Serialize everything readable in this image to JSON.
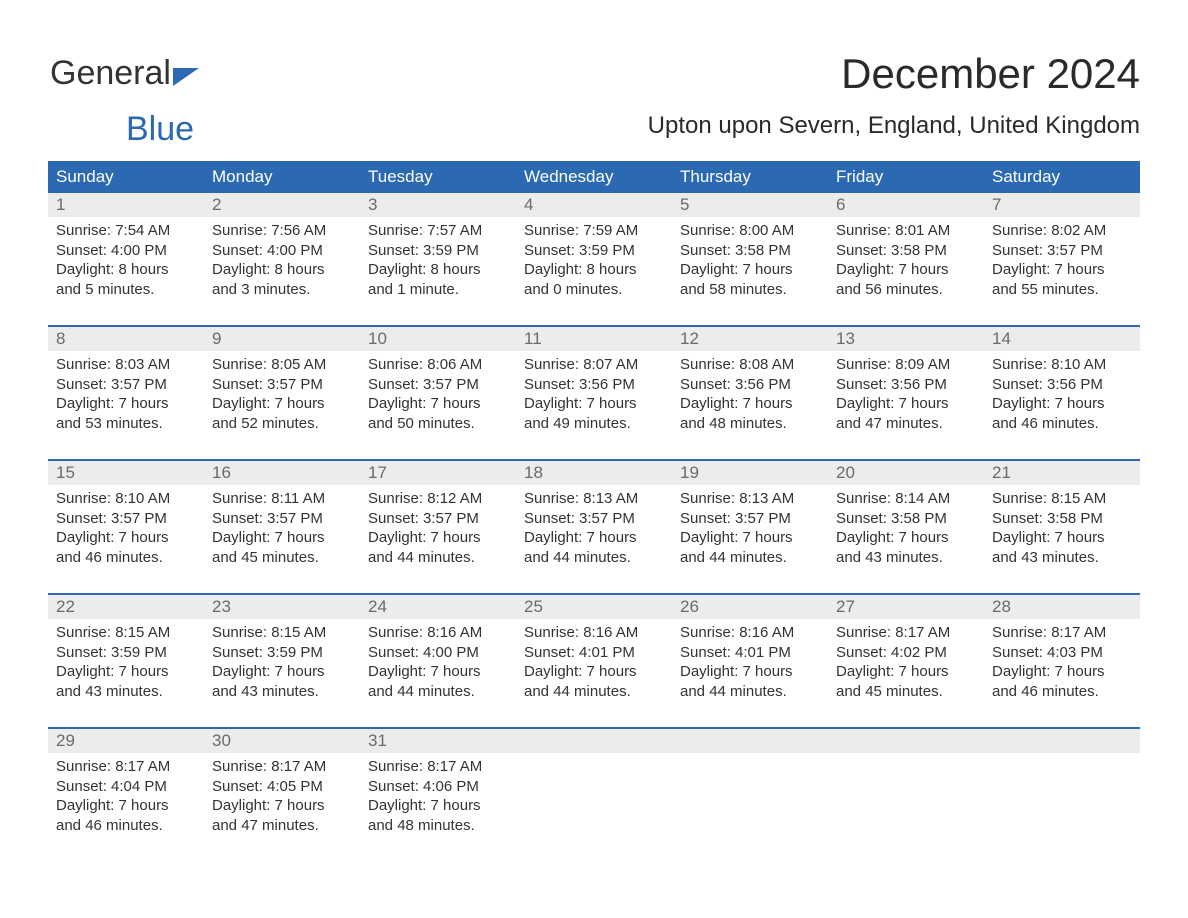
{
  "brand": {
    "word1": "General",
    "word2": "Blue"
  },
  "title": "December 2024",
  "location": "Upton upon Severn, England, United Kingdom",
  "colors": {
    "header_bg": "#2b6ab3",
    "header_text": "#ffffff",
    "daynum_bg": "#ececec",
    "daynum_text": "#6b6b6b",
    "body_text": "#333333",
    "rule": "#2b6ab3",
    "page_bg": "#ffffff"
  },
  "weekdays": [
    "Sunday",
    "Monday",
    "Tuesday",
    "Wednesday",
    "Thursday",
    "Friday",
    "Saturday"
  ],
  "weeks": [
    [
      {
        "n": "1",
        "sunrise": "Sunrise: 7:54 AM",
        "sunset": "Sunset: 4:00 PM",
        "daylight": "Daylight: 8 hours and 5 minutes."
      },
      {
        "n": "2",
        "sunrise": "Sunrise: 7:56 AM",
        "sunset": "Sunset: 4:00 PM",
        "daylight": "Daylight: 8 hours and 3 minutes."
      },
      {
        "n": "3",
        "sunrise": "Sunrise: 7:57 AM",
        "sunset": "Sunset: 3:59 PM",
        "daylight": "Daylight: 8 hours and 1 minute."
      },
      {
        "n": "4",
        "sunrise": "Sunrise: 7:59 AM",
        "sunset": "Sunset: 3:59 PM",
        "daylight": "Daylight: 8 hours and 0 minutes."
      },
      {
        "n": "5",
        "sunrise": "Sunrise: 8:00 AM",
        "sunset": "Sunset: 3:58 PM",
        "daylight": "Daylight: 7 hours and 58 minutes."
      },
      {
        "n": "6",
        "sunrise": "Sunrise: 8:01 AM",
        "sunset": "Sunset: 3:58 PM",
        "daylight": "Daylight: 7 hours and 56 minutes."
      },
      {
        "n": "7",
        "sunrise": "Sunrise: 8:02 AM",
        "sunset": "Sunset: 3:57 PM",
        "daylight": "Daylight: 7 hours and 55 minutes."
      }
    ],
    [
      {
        "n": "8",
        "sunrise": "Sunrise: 8:03 AM",
        "sunset": "Sunset: 3:57 PM",
        "daylight": "Daylight: 7 hours and 53 minutes."
      },
      {
        "n": "9",
        "sunrise": "Sunrise: 8:05 AM",
        "sunset": "Sunset: 3:57 PM",
        "daylight": "Daylight: 7 hours and 52 minutes."
      },
      {
        "n": "10",
        "sunrise": "Sunrise: 8:06 AM",
        "sunset": "Sunset: 3:57 PM",
        "daylight": "Daylight: 7 hours and 50 minutes."
      },
      {
        "n": "11",
        "sunrise": "Sunrise: 8:07 AM",
        "sunset": "Sunset: 3:56 PM",
        "daylight": "Daylight: 7 hours and 49 minutes."
      },
      {
        "n": "12",
        "sunrise": "Sunrise: 8:08 AM",
        "sunset": "Sunset: 3:56 PM",
        "daylight": "Daylight: 7 hours and 48 minutes."
      },
      {
        "n": "13",
        "sunrise": "Sunrise: 8:09 AM",
        "sunset": "Sunset: 3:56 PM",
        "daylight": "Daylight: 7 hours and 47 minutes."
      },
      {
        "n": "14",
        "sunrise": "Sunrise: 8:10 AM",
        "sunset": "Sunset: 3:56 PM",
        "daylight": "Daylight: 7 hours and 46 minutes."
      }
    ],
    [
      {
        "n": "15",
        "sunrise": "Sunrise: 8:10 AM",
        "sunset": "Sunset: 3:57 PM",
        "daylight": "Daylight: 7 hours and 46 minutes."
      },
      {
        "n": "16",
        "sunrise": "Sunrise: 8:11 AM",
        "sunset": "Sunset: 3:57 PM",
        "daylight": "Daylight: 7 hours and 45 minutes."
      },
      {
        "n": "17",
        "sunrise": "Sunrise: 8:12 AM",
        "sunset": "Sunset: 3:57 PM",
        "daylight": "Daylight: 7 hours and 44 minutes."
      },
      {
        "n": "18",
        "sunrise": "Sunrise: 8:13 AM",
        "sunset": "Sunset: 3:57 PM",
        "daylight": "Daylight: 7 hours and 44 minutes."
      },
      {
        "n": "19",
        "sunrise": "Sunrise: 8:13 AM",
        "sunset": "Sunset: 3:57 PM",
        "daylight": "Daylight: 7 hours and 44 minutes."
      },
      {
        "n": "20",
        "sunrise": "Sunrise: 8:14 AM",
        "sunset": "Sunset: 3:58 PM",
        "daylight": "Daylight: 7 hours and 43 minutes."
      },
      {
        "n": "21",
        "sunrise": "Sunrise: 8:15 AM",
        "sunset": "Sunset: 3:58 PM",
        "daylight": "Daylight: 7 hours and 43 minutes."
      }
    ],
    [
      {
        "n": "22",
        "sunrise": "Sunrise: 8:15 AM",
        "sunset": "Sunset: 3:59 PM",
        "daylight": "Daylight: 7 hours and 43 minutes."
      },
      {
        "n": "23",
        "sunrise": "Sunrise: 8:15 AM",
        "sunset": "Sunset: 3:59 PM",
        "daylight": "Daylight: 7 hours and 43 minutes."
      },
      {
        "n": "24",
        "sunrise": "Sunrise: 8:16 AM",
        "sunset": "Sunset: 4:00 PM",
        "daylight": "Daylight: 7 hours and 44 minutes."
      },
      {
        "n": "25",
        "sunrise": "Sunrise: 8:16 AM",
        "sunset": "Sunset: 4:01 PM",
        "daylight": "Daylight: 7 hours and 44 minutes."
      },
      {
        "n": "26",
        "sunrise": "Sunrise: 8:16 AM",
        "sunset": "Sunset: 4:01 PM",
        "daylight": "Daylight: 7 hours and 44 minutes."
      },
      {
        "n": "27",
        "sunrise": "Sunrise: 8:17 AM",
        "sunset": "Sunset: 4:02 PM",
        "daylight": "Daylight: 7 hours and 45 minutes."
      },
      {
        "n": "28",
        "sunrise": "Sunrise: 8:17 AM",
        "sunset": "Sunset: 4:03 PM",
        "daylight": "Daylight: 7 hours and 46 minutes."
      }
    ],
    [
      {
        "n": "29",
        "sunrise": "Sunrise: 8:17 AM",
        "sunset": "Sunset: 4:04 PM",
        "daylight": "Daylight: 7 hours and 46 minutes."
      },
      {
        "n": "30",
        "sunrise": "Sunrise: 8:17 AM",
        "sunset": "Sunset: 4:05 PM",
        "daylight": "Daylight: 7 hours and 47 minutes."
      },
      {
        "n": "31",
        "sunrise": "Sunrise: 8:17 AM",
        "sunset": "Sunset: 4:06 PM",
        "daylight": "Daylight: 7 hours and 48 minutes."
      },
      null,
      null,
      null,
      null
    ]
  ],
  "typography": {
    "title_fontsize": 42,
    "location_fontsize": 24,
    "weekday_fontsize": 17,
    "daynum_fontsize": 17,
    "body_fontsize": 15
  }
}
